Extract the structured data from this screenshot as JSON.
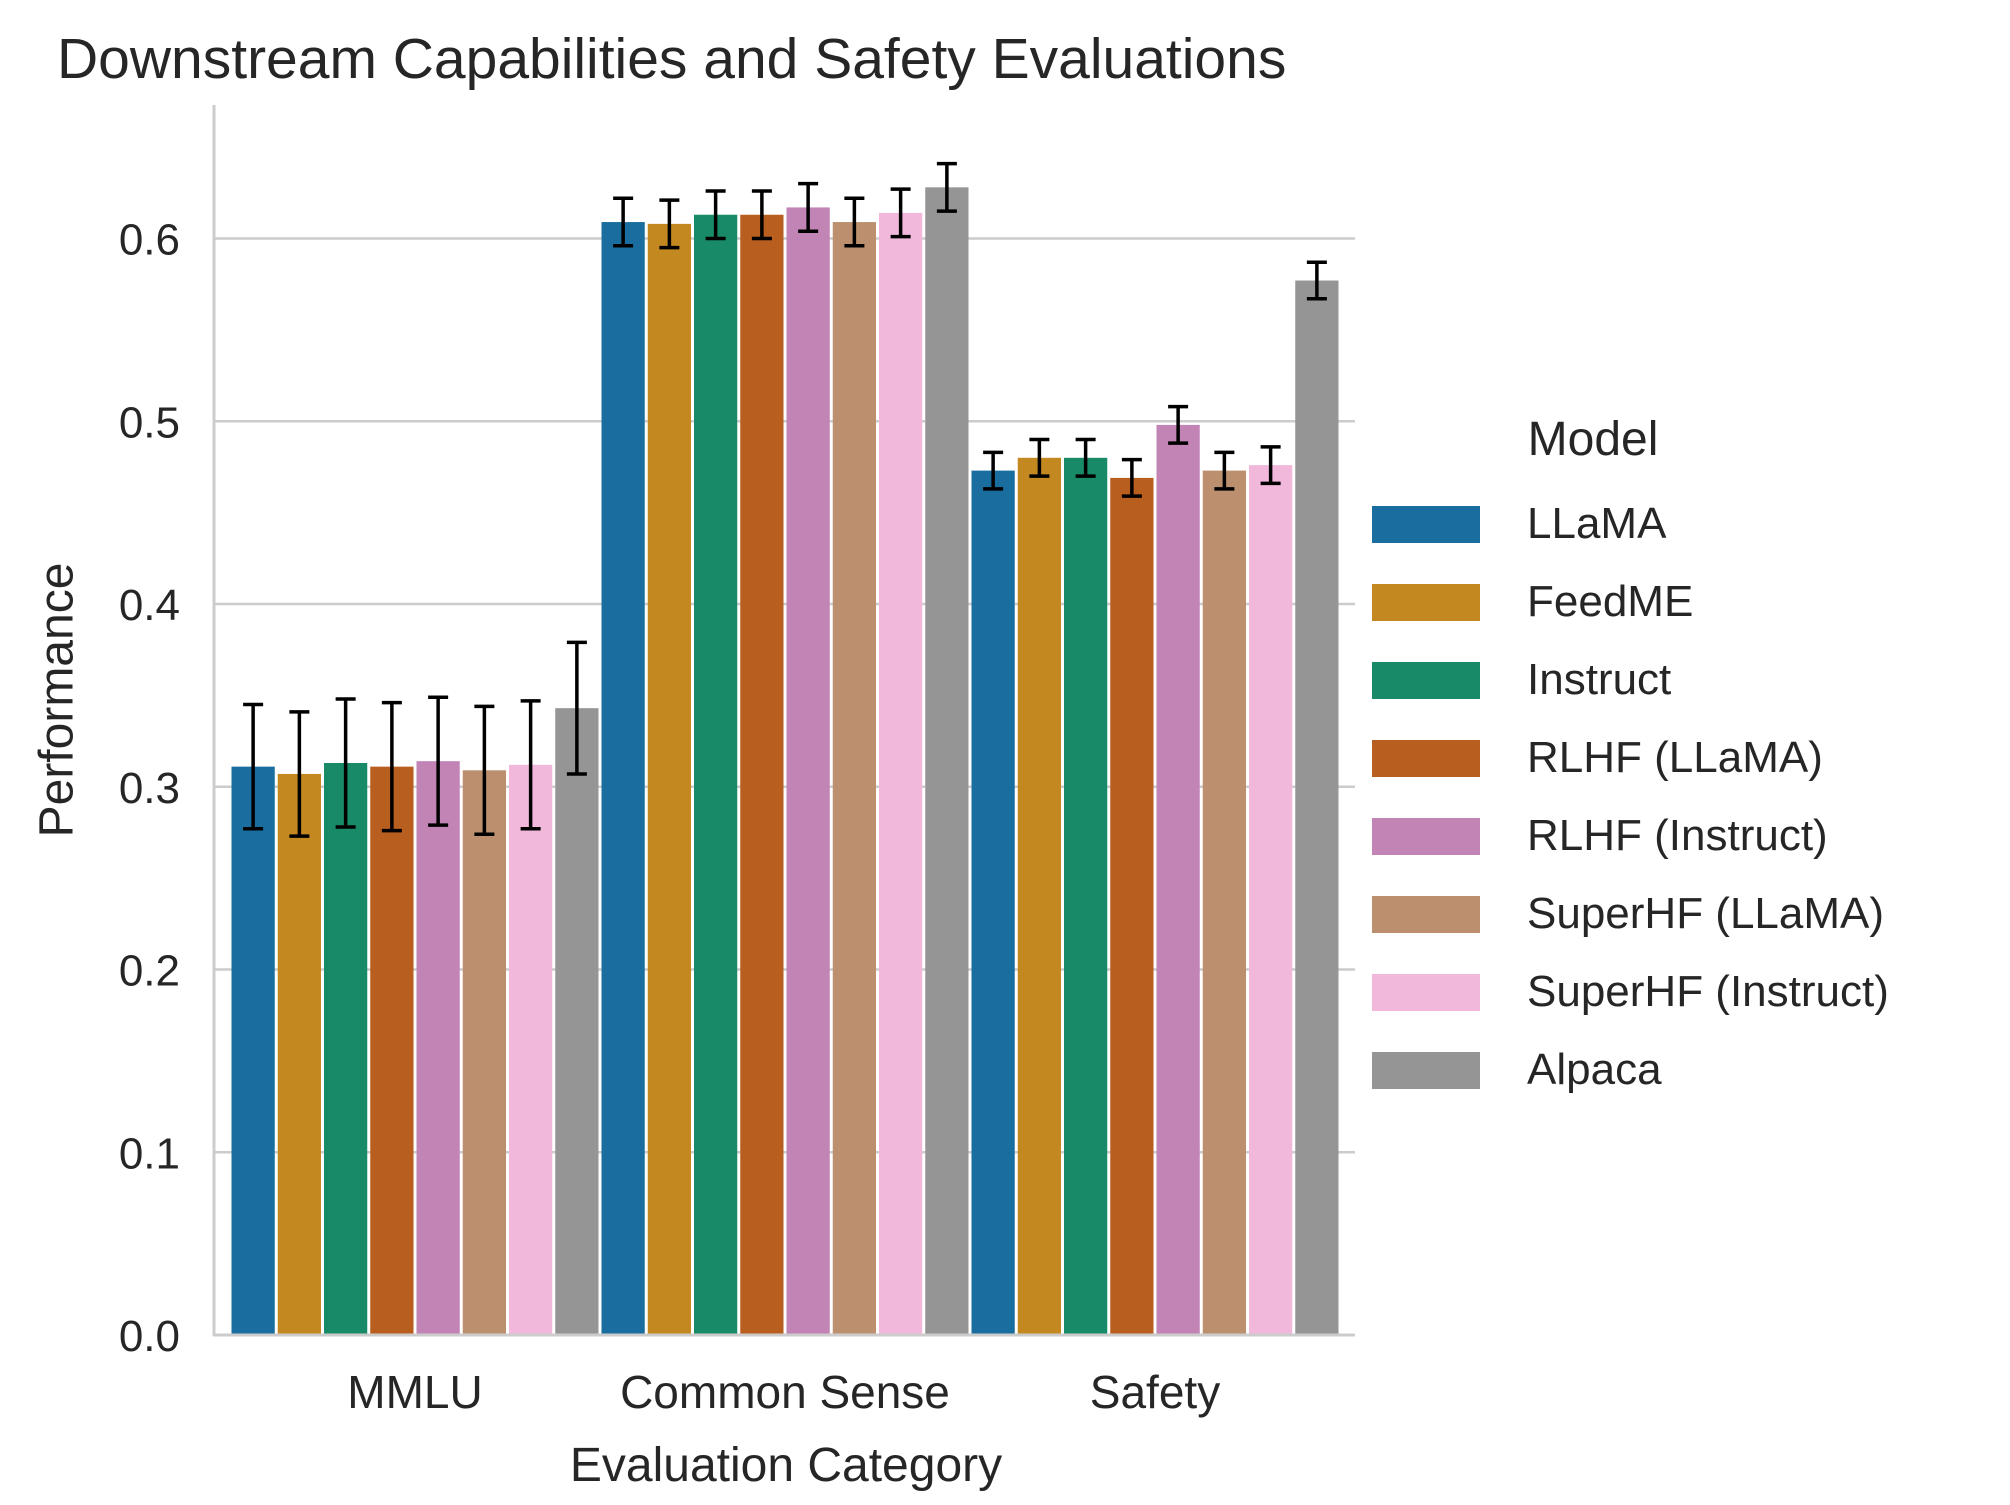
{
  "chart_data": {
    "type": "bar",
    "title": "Downstream Capabilities and Safety Evaluations",
    "xlabel": "Evaluation Category",
    "ylabel": "Performance",
    "ylim": [
      0,
      0.66
    ],
    "yticks": [
      "0.0",
      "0.1",
      "0.2",
      "0.3",
      "0.4",
      "0.5",
      "0.6"
    ],
    "grid": "horizontal",
    "legend_title": "Model",
    "legend_placement": "right",
    "categories": [
      "MMLU",
      "Common Sense",
      "Safety"
    ],
    "series": [
      {
        "name": "LLaMA",
        "color": "#1a6e9f",
        "values": [
          0.311,
          0.609,
          0.473
        ],
        "errors": [
          0.034,
          0.013,
          0.01
        ]
      },
      {
        "name": "FeedME",
        "color": "#c48820",
        "values": [
          0.307,
          0.608,
          0.48
        ],
        "errors": [
          0.034,
          0.013,
          0.01
        ]
      },
      {
        "name": "Instruct",
        "color": "#188a68",
        "values": [
          0.313,
          0.613,
          0.48
        ],
        "errors": [
          0.035,
          0.013,
          0.01
        ]
      },
      {
        "name": "RLHF (LLaMA)",
        "color": "#b85e1e",
        "values": [
          0.311,
          0.613,
          0.469
        ],
        "errors": [
          0.035,
          0.013,
          0.01
        ]
      },
      {
        "name": "RLHF (Instruct)",
        "color": "#c283b5",
        "values": [
          0.314,
          0.617,
          0.498
        ],
        "errors": [
          0.035,
          0.013,
          0.01
        ]
      },
      {
        "name": "SuperHF (LLaMA)",
        "color": "#bc906e",
        "values": [
          0.309,
          0.609,
          0.473
        ],
        "errors": [
          0.035,
          0.013,
          0.01
        ]
      },
      {
        "name": "SuperHF (Instruct)",
        "color": "#f2b8dc",
        "values": [
          0.312,
          0.614,
          0.476
        ],
        "errors": [
          0.035,
          0.013,
          0.01
        ]
      },
      {
        "name": "Alpaca",
        "color": "#959595",
        "values": [
          0.343,
          0.628,
          0.577
        ],
        "errors": [
          0.036,
          0.013,
          0.01
        ]
      }
    ]
  }
}
